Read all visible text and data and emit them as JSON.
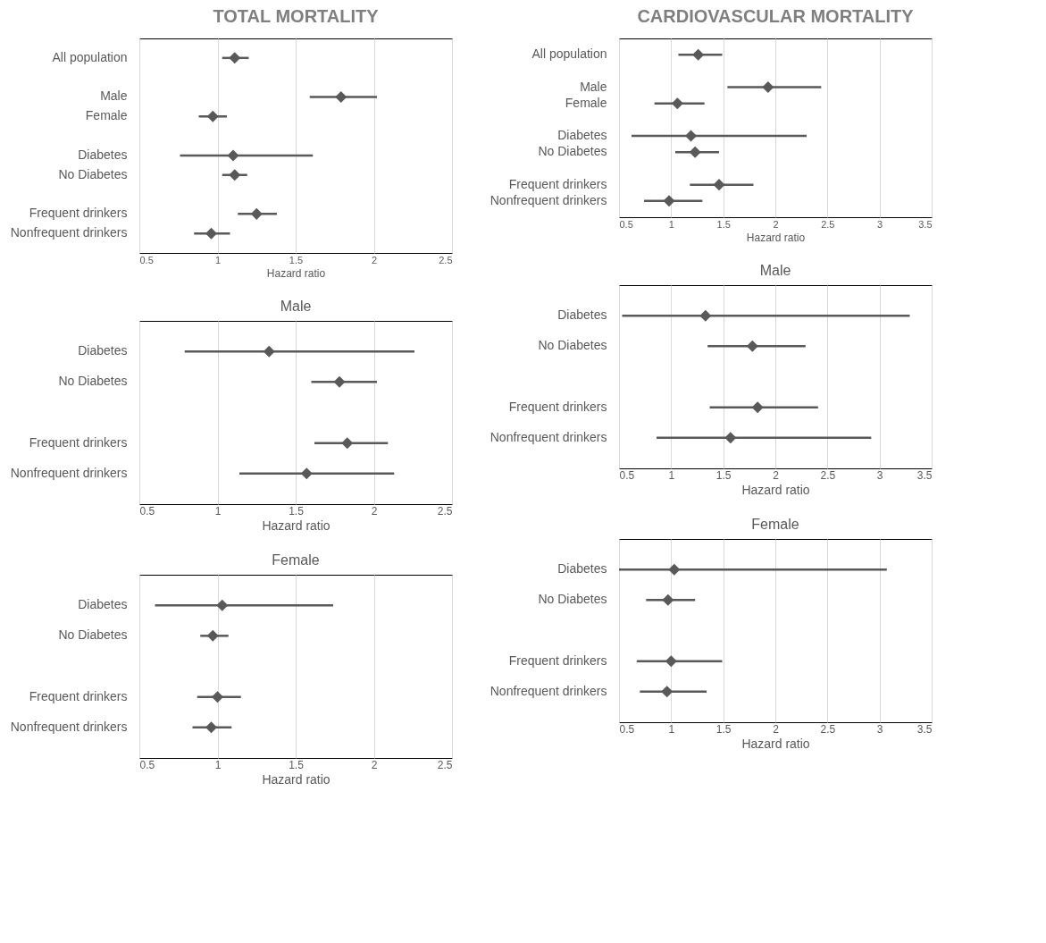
{
  "chart_data": [
    {
      "type": "scatter",
      "orientation": "horizontal",
      "title": "TOTAL MORTALITY",
      "xlabel": "Hazard ratio",
      "categories": [
        "All population",
        null,
        "Male",
        "Female",
        null,
        "Diabetes",
        "No Diabetes",
        null,
        "Frequent drinkers",
        "Nonfrequent drinkers"
      ],
      "values": [
        1.11,
        null,
        1.79,
        0.97,
        null,
        1.1,
        1.11,
        null,
        1.25,
        0.96
      ],
      "errors": [
        [
          1.03,
          1.2
        ],
        null,
        [
          1.59,
          2.02
        ],
        [
          0.88,
          1.06
        ],
        null,
        [
          0.76,
          1.61
        ],
        [
          1.03,
          1.19
        ],
        null,
        [
          1.13,
          1.38
        ],
        [
          0.85,
          1.08
        ]
      ],
      "color": "#595959",
      "marker": "diamond",
      "xlim": [
        0.5,
        2.5
      ],
      "xticks": [
        0.5,
        1,
        1.5,
        2,
        2.5
      ],
      "grid": "x"
    },
    {
      "type": "scatter",
      "orientation": "horizontal",
      "title": "CARDIOVASCULAR MORTALITY",
      "xlabel": "Hazard ratio",
      "categories": [
        "All population",
        null,
        "Male",
        "Female",
        null,
        "Diabetes",
        "No Diabetes",
        null,
        "Frequent drinkers",
        "Nonfrequent drinkers"
      ],
      "values": [
        1.26,
        null,
        1.93,
        1.06,
        null,
        1.19,
        1.23,
        null,
        1.46,
        0.98
      ],
      "errors": [
        [
          1.07,
          1.49
        ],
        null,
        [
          1.54,
          2.44
        ],
        [
          0.84,
          1.32
        ],
        null,
        [
          0.62,
          2.3
        ],
        [
          1.04,
          1.46
        ],
        null,
        [
          1.18,
          1.79
        ],
        [
          0.74,
          1.3
        ]
      ],
      "color": "#595959",
      "marker": "diamond",
      "xlim": [
        0.5,
        3.5
      ],
      "xticks": [
        0.5,
        1,
        1.5,
        2,
        2.5,
        3,
        3.5
      ],
      "grid": "x"
    },
    {
      "type": "scatter",
      "orientation": "horizontal",
      "title": "Male",
      "xlabel": "Hazard ratio",
      "categories": [
        "Diabetes",
        "No Diabetes",
        null,
        "Frequent drinkers",
        "Nonfrequent drinkers"
      ],
      "values": [
        1.33,
        1.78,
        null,
        1.83,
        1.57
      ],
      "errors": [
        [
          0.79,
          2.26
        ],
        [
          1.6,
          2.02
        ],
        null,
        [
          1.62,
          2.09
        ],
        [
          1.14,
          2.13
        ]
      ],
      "color": "#595959",
      "marker": "diamond",
      "xlim": [
        0.5,
        2.5
      ],
      "xticks": [
        0.5,
        1,
        1.5,
        2,
        2.5
      ],
      "grid": "x"
    },
    {
      "type": "scatter",
      "orientation": "horizontal",
      "title": "Male",
      "xlabel": "Hazard ratio",
      "categories": [
        "Diabetes",
        "No Diabetes",
        null,
        "Frequent drinkers",
        "Nonfrequent drinkers"
      ],
      "values": [
        1.33,
        1.78,
        null,
        1.83,
        1.57
      ],
      "errors": [
        [
          0.53,
          3.29
        ],
        [
          1.35,
          2.29
        ],
        null,
        [
          1.37,
          2.41
        ],
        [
          0.86,
          2.92
        ]
      ],
      "color": "#595959",
      "marker": "diamond",
      "xlim": [
        0.5,
        3.5
      ],
      "xticks": [
        0.5,
        1,
        1.5,
        2,
        2.5,
        3,
        3.5
      ],
      "grid": "x"
    },
    {
      "type": "scatter",
      "orientation": "horizontal",
      "title": "Female",
      "xlabel": "Hazard ratio",
      "categories": [
        "Diabetes",
        "No Diabetes",
        null,
        "Frequent drinkers",
        "Nonfrequent drinkers"
      ],
      "values": [
        1.03,
        0.97,
        null,
        1.0,
        0.96
      ],
      "errors": [
        [
          0.6,
          1.74
        ],
        [
          0.89,
          1.07
        ],
        null,
        [
          0.87,
          1.15
        ],
        [
          0.84,
          1.09
        ]
      ],
      "color": "#595959",
      "marker": "diamond",
      "xlim": [
        0.5,
        2.5
      ],
      "xticks": [
        0.5,
        1,
        1.5,
        2,
        2.5
      ],
      "grid": "x"
    },
    {
      "type": "scatter",
      "orientation": "horizontal",
      "title": "Female",
      "xlabel": "Hazard ratio",
      "categories": [
        "Diabetes",
        "No Diabetes",
        null,
        "Frequent drinkers",
        "Nonfrequent drinkers"
      ],
      "values": [
        1.03,
        0.97,
        null,
        1.0,
        0.96
      ],
      "errors": [
        [
          0.5,
          3.07
        ],
        [
          0.76,
          1.23
        ],
        null,
        [
          0.67,
          1.49
        ],
        [
          0.7,
          1.34
        ]
      ],
      "color": "#595959",
      "marker": "diamond",
      "xlim": [
        0.5,
        3.5
      ],
      "xticks": [
        0.5,
        1,
        1.5,
        2,
        2.5,
        3,
        3.5
      ],
      "grid": "x"
    }
  ]
}
